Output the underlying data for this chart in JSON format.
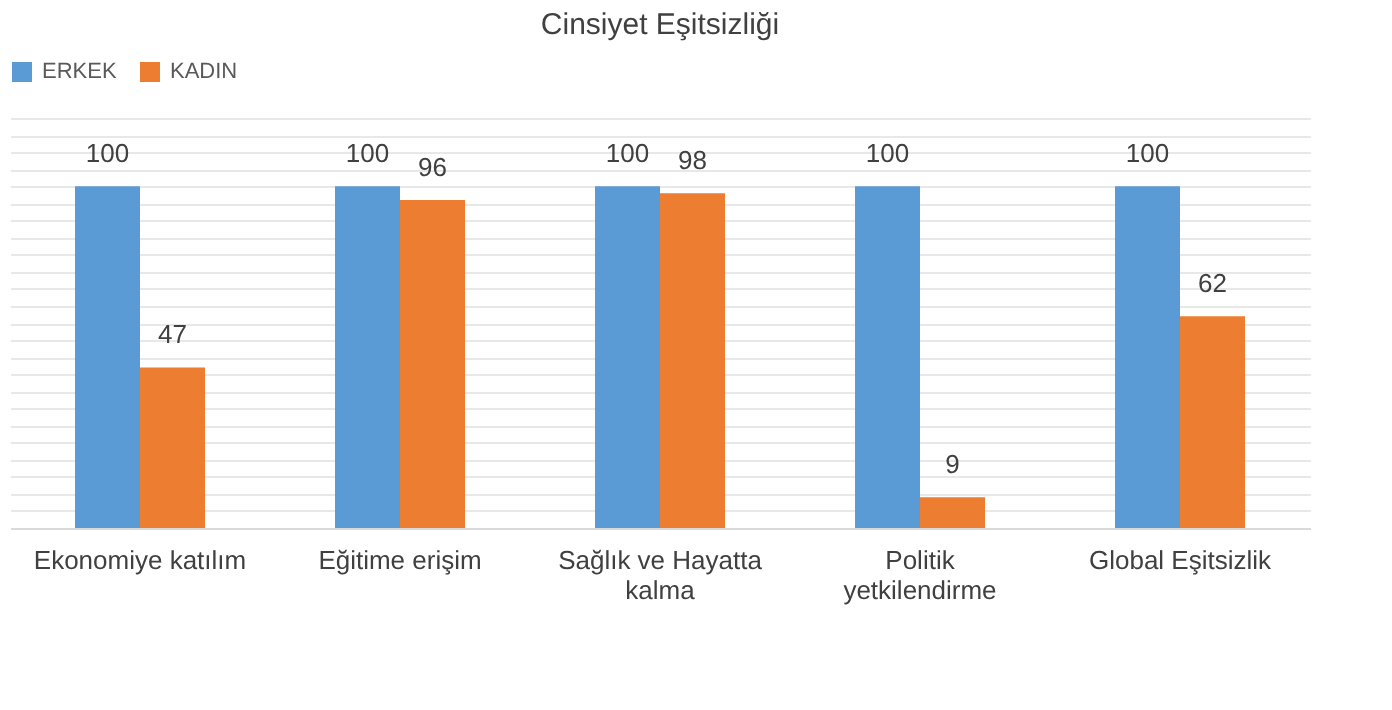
{
  "chart_data": {
    "type": "bar",
    "title": "Cinsiyet Eşitsizliği",
    "categories": [
      "Ekonomiye katılım",
      "Eğitime erişim",
      "Sağlık ve Hayatta\nkalma",
      "Politik\nyetkilendirme",
      "Global Eşitsizlik"
    ],
    "series": [
      {
        "name": "ERKEK",
        "color": "#5b9bd5",
        "values": [
          100,
          100,
          100,
          100,
          100
        ]
      },
      {
        "name": "KADIN",
        "color": "#ed7d31",
        "values": [
          47,
          96,
          98,
          9,
          62
        ]
      }
    ],
    "tick_labels": "x",
    "grid": "y",
    "legend": "top",
    "data_labels": true
  }
}
